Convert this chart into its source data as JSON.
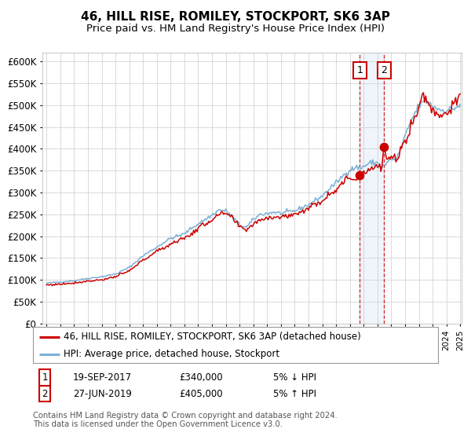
{
  "title": "46, HILL RISE, ROMILEY, STOCKPORT, SK6 3AP",
  "subtitle": "Price paid vs. HM Land Registry's House Price Index (HPI)",
  "legend_line1": "46, HILL RISE, ROMILEY, STOCKPORT, SK6 3AP (detached house)",
  "legend_line2": "HPI: Average price, detached house, Stockport",
  "transaction1_date": "19-SEP-2017",
  "transaction1_price": "£340,000",
  "transaction1_note": "5% ↓ HPI",
  "transaction2_date": "27-JUN-2019",
  "transaction2_price": "£405,000",
  "transaction2_note": "5% ↑ HPI",
  "footer": "Contains HM Land Registry data © Crown copyright and database right 2024.\nThis data is licensed under the Open Government Licence v3.0.",
  "hpi_color": "#7ab0d4",
  "price_color": "#cc0000",
  "marker_color": "#cc0000",
  "dashed_line_color": "#cc0000",
  "highlight_color": "#d8e8f5",
  "grid_color": "#cccccc",
  "background_color": "#ffffff",
  "ylim": [
    0,
    620000
  ],
  "ytick_step": 50000,
  "start_year": 1995,
  "end_year": 2025,
  "transaction1_year": 2017.72,
  "transaction1_value": 340000,
  "transaction2_year": 2019.49,
  "transaction2_value": 405000
}
